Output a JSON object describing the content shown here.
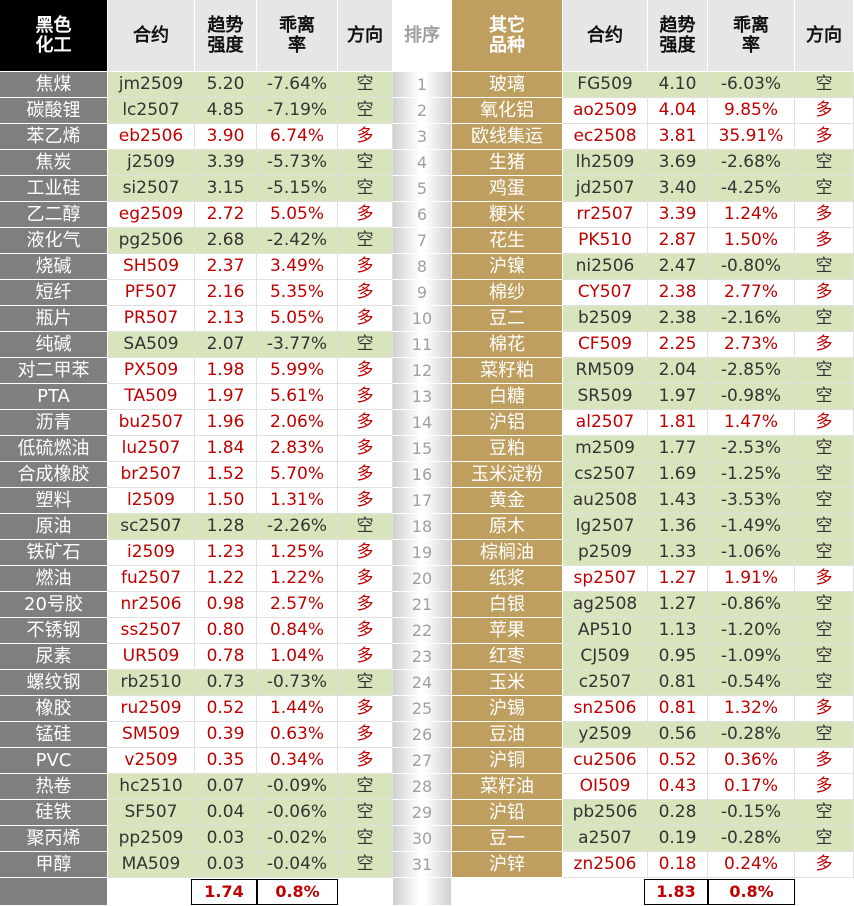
{
  "left": {
    "headers": [
      "黑色化工",
      "合约",
      "趋势强度",
      "乖离率",
      "方向"
    ],
    "rows": [
      [
        "焦煤",
        "jm2509",
        "5.20",
        "-7.64%",
        "空"
      ],
      [
        "碳酸锂",
        "lc2507",
        "4.85",
        "-7.19%",
        "空"
      ],
      [
        "苯乙烯",
        "eb2506",
        "3.90",
        "6.74%",
        "多"
      ],
      [
        "焦炭",
        "j2509",
        "3.39",
        "-5.73%",
        "空"
      ],
      [
        "工业硅",
        "si2507",
        "3.15",
        "-5.15%",
        "空"
      ],
      [
        "乙二醇",
        "eg2509",
        "2.72",
        "5.05%",
        "多"
      ],
      [
        "液化气",
        "pg2506",
        "2.68",
        "-2.42%",
        "空"
      ],
      [
        "烧碱",
        "SH509",
        "2.37",
        "3.49%",
        "多"
      ],
      [
        "短纤",
        "PF507",
        "2.16",
        "5.35%",
        "多"
      ],
      [
        "瓶片",
        "PR507",
        "2.13",
        "5.05%",
        "多"
      ],
      [
        "纯碱",
        "SA509",
        "2.07",
        "-3.77%",
        "空"
      ],
      [
        "对二甲苯",
        "PX509",
        "1.98",
        "5.99%",
        "多"
      ],
      [
        "PTA",
        "TA509",
        "1.97",
        "5.61%",
        "多"
      ],
      [
        "沥青",
        "bu2507",
        "1.96",
        "2.06%",
        "多"
      ],
      [
        "低硫燃油",
        "lu2507",
        "1.84",
        "2.83%",
        "多"
      ],
      [
        "合成橡胶",
        "br2507",
        "1.52",
        "5.70%",
        "多"
      ],
      [
        "塑料",
        "l2509",
        "1.50",
        "1.31%",
        "多"
      ],
      [
        "原油",
        "sc2507",
        "1.28",
        "-2.26%",
        "空"
      ],
      [
        "铁矿石",
        "i2509",
        "1.23",
        "1.25%",
        "多"
      ],
      [
        "燃油",
        "fu2507",
        "1.22",
        "1.22%",
        "多"
      ],
      [
        "20号胶",
        "nr2506",
        "0.98",
        "2.57%",
        "多"
      ],
      [
        "不锈钢",
        "ss2507",
        "0.80",
        "0.84%",
        "多"
      ],
      [
        "尿素",
        "UR509",
        "0.78",
        "1.04%",
        "多"
      ],
      [
        "螺纹钢",
        "rb2510",
        "0.73",
        "-0.73%",
        "空"
      ],
      [
        "橡胶",
        "ru2509",
        "0.52",
        "1.44%",
        "多"
      ],
      [
        "锰硅",
        "SM509",
        "0.39",
        "0.63%",
        "多"
      ],
      [
        "PVC",
        "v2509",
        "0.35",
        "0.34%",
        "多"
      ],
      [
        "热卷",
        "hc2510",
        "0.07",
        "-0.09%",
        "空"
      ],
      [
        "硅铁",
        "SF507",
        "0.04",
        "-0.06%",
        "空"
      ],
      [
        "聚丙烯",
        "pp2509",
        "0.03",
        "-0.02%",
        "空"
      ],
      [
        "甲醇",
        "MA509",
        "0.03",
        "-0.04%",
        "空"
      ]
    ],
    "footer": [
      "1.74",
      "0.8%"
    ]
  },
  "rank": {
    "header": "排序",
    "values": [
      1,
      2,
      3,
      4,
      5,
      6,
      7,
      8,
      9,
      10,
      11,
      12,
      13,
      14,
      15,
      16,
      17,
      18,
      19,
      20,
      21,
      22,
      23,
      24,
      25,
      26,
      27,
      28,
      29,
      30,
      31
    ]
  },
  "right": {
    "headers": [
      "其它品种",
      "合约",
      "趋势强度",
      "乖离率",
      "方向"
    ],
    "rows": [
      [
        "玻璃",
        "FG509",
        "4.10",
        "-6.03%",
        "空"
      ],
      [
        "氧化铝",
        "ao2509",
        "4.04",
        "9.85%",
        "多"
      ],
      [
        "欧线集运",
        "ec2508",
        "3.81",
        "35.91%",
        "多"
      ],
      [
        "生猪",
        "lh2509",
        "3.69",
        "-2.68%",
        "空"
      ],
      [
        "鸡蛋",
        "jd2507",
        "3.40",
        "-4.25%",
        "空"
      ],
      [
        "粳米",
        "rr2507",
        "3.39",
        "1.24%",
        "多"
      ],
      [
        "花生",
        "PK510",
        "2.87",
        "1.50%",
        "多"
      ],
      [
        "沪镍",
        "ni2506",
        "2.47",
        "-0.80%",
        "空"
      ],
      [
        "棉纱",
        "CY507",
        "2.38",
        "2.77%",
        "多"
      ],
      [
        "豆二",
        "b2509",
        "2.38",
        "-2.16%",
        "空"
      ],
      [
        "棉花",
        "CF509",
        "2.25",
        "2.73%",
        "多"
      ],
      [
        "菜籽粕",
        "RM509",
        "2.04",
        "-2.85%",
        "空"
      ],
      [
        "白糖",
        "SR509",
        "1.97",
        "-0.98%",
        "空"
      ],
      [
        "沪铝",
        "al2507",
        "1.81",
        "1.47%",
        "多"
      ],
      [
        "豆粕",
        "m2509",
        "1.77",
        "-2.53%",
        "空"
      ],
      [
        "玉米淀粉",
        "cs2507",
        "1.69",
        "-1.25%",
        "空"
      ],
      [
        "黄金",
        "au2508",
        "1.43",
        "-3.53%",
        "空"
      ],
      [
        "原木",
        "lg2507",
        "1.36",
        "-1.49%",
        "空"
      ],
      [
        "棕榈油",
        "p2509",
        "1.33",
        "-1.06%",
        "空"
      ],
      [
        "纸浆",
        "sp2507",
        "1.27",
        "1.91%",
        "多"
      ],
      [
        "白银",
        "ag2508",
        "1.27",
        "-0.86%",
        "空"
      ],
      [
        "苹果",
        "AP510",
        "1.13",
        "-1.20%",
        "空"
      ],
      [
        "红枣",
        "CJ509",
        "0.95",
        "-1.09%",
        "空"
      ],
      [
        "玉米",
        "c2507",
        "0.81",
        "-0.54%",
        "空"
      ],
      [
        "沪锡",
        "sn2506",
        "0.81",
        "1.32%",
        "多"
      ],
      [
        "豆油",
        "y2509",
        "0.56",
        "-0.28%",
        "空"
      ],
      [
        "沪铜",
        "cu2506",
        "0.52",
        "0.36%",
        "多"
      ],
      [
        "菜籽油",
        "OI509",
        "0.43",
        "0.17%",
        "多"
      ],
      [
        "沪铅",
        "pb2506",
        "0.28",
        "-0.15%",
        "空"
      ],
      [
        "豆一",
        "a2507",
        "0.19",
        "-0.28%",
        "空"
      ],
      [
        "沪锌",
        "zn2506",
        "0.18",
        "0.24%",
        "多"
      ]
    ],
    "footer": [
      "1.83",
      "0.8%"
    ]
  }
}
